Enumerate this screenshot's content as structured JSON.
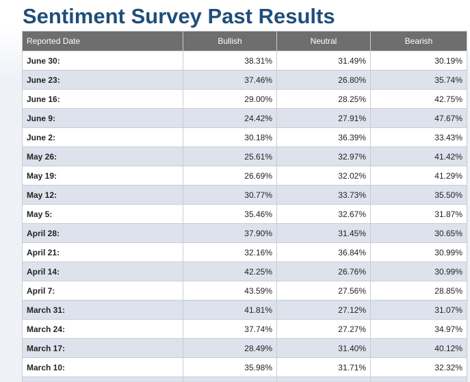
{
  "title": "Sentiment Survey Past Results",
  "columns": [
    "Reported Date",
    "Bullish",
    "Neutral",
    "Bearish"
  ],
  "rows": [
    {
      "date": "June 30:",
      "bullish": "38.31%",
      "neutral": "31.49%",
      "bearish": "30.19%"
    },
    {
      "date": "June 23:",
      "bullish": "37.46%",
      "neutral": "26.80%",
      "bearish": "35.74%"
    },
    {
      "date": "June 16:",
      "bullish": "29.00%",
      "neutral": "28.25%",
      "bearish": "42.75%"
    },
    {
      "date": "June 9:",
      "bullish": "24.42%",
      "neutral": "27.91%",
      "bearish": "47.67%"
    },
    {
      "date": "June 2:",
      "bullish": "30.18%",
      "neutral": "36.39%",
      "bearish": "33.43%"
    },
    {
      "date": "May 26:",
      "bullish": "25.61%",
      "neutral": "32.97%",
      "bearish": "41.42%"
    },
    {
      "date": "May 19:",
      "bullish": "26.69%",
      "neutral": "32.02%",
      "bearish": "41.29%"
    },
    {
      "date": "May 12:",
      "bullish": "30.77%",
      "neutral": "33.73%",
      "bearish": "35.50%"
    },
    {
      "date": "May 5:",
      "bullish": "35.46%",
      "neutral": "32.67%",
      "bearish": "31.87%"
    },
    {
      "date": "April 28:",
      "bullish": "37.90%",
      "neutral": "31.45%",
      "bearish": "30.65%"
    },
    {
      "date": "April 21:",
      "bullish": "32.16%",
      "neutral": "36.84%",
      "bearish": "30.99%"
    },
    {
      "date": "April 14:",
      "bullish": "42.25%",
      "neutral": "26.76%",
      "bearish": "30.99%"
    },
    {
      "date": "April 7:",
      "bullish": "43.59%",
      "neutral": "27.56%",
      "bearish": "28.85%"
    },
    {
      "date": "March 31:",
      "bullish": "41.81%",
      "neutral": "27.12%",
      "bearish": "31.07%"
    },
    {
      "date": "March 24:",
      "bullish": "37.74%",
      "neutral": "27.27%",
      "bearish": "34.97%"
    },
    {
      "date": "March 17:",
      "bullish": "28.49%",
      "neutral": "31.40%",
      "bearish": "40.12%"
    },
    {
      "date": "March 10:",
      "bullish": "35.98%",
      "neutral": "31.71%",
      "bearish": "32.32%"
    },
    {
      "date": "",
      "bullish": "",
      "neutral": "",
      "bearish": ""
    }
  ],
  "colors": {
    "title": "#1f4e79",
    "header_bg": "#6e6e6e",
    "row_alt_bg": "#dde2ec",
    "border": "#c9ccd2"
  }
}
